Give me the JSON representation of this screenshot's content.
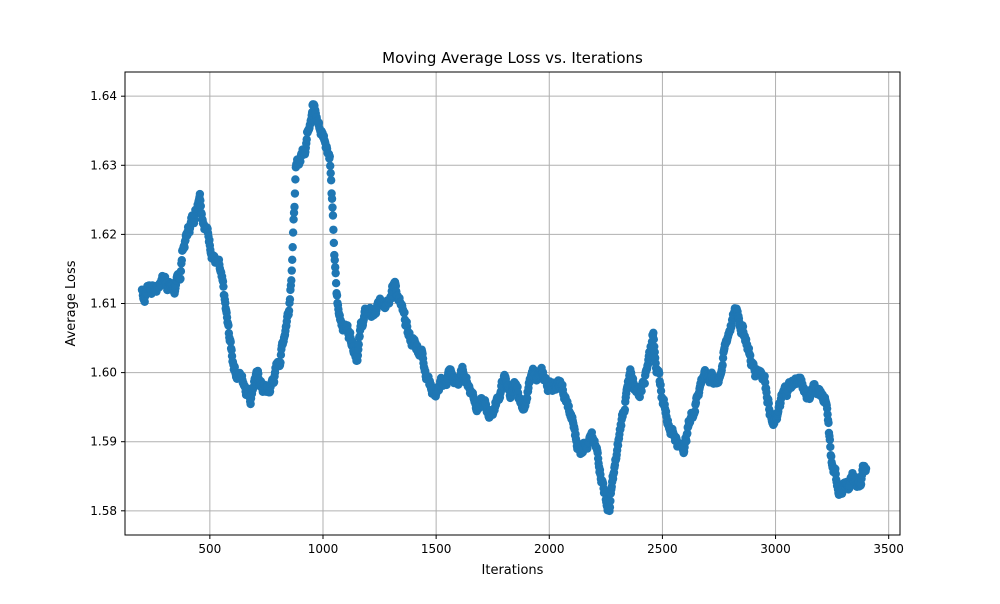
{
  "chart_data": {
    "type": "scatter",
    "title": "Moving Average Loss vs. Iterations",
    "xlabel": "Iterations",
    "ylabel": "Average Loss",
    "xlim": [
      125,
      3550
    ],
    "ylim": [
      1.5765,
      1.6435
    ],
    "grid": true,
    "legend": "none",
    "marker_color": "#1f77b4",
    "xticks": [
      500,
      1000,
      1500,
      2000,
      2500,
      3000,
      3500
    ],
    "xtick_labels": [
      "500",
      "1000",
      "1500",
      "2000",
      "2500",
      "3000",
      "3500"
    ],
    "yticks": [
      1.58,
      1.59,
      1.6,
      1.61,
      1.62,
      1.63,
      1.64
    ],
    "ytick_labels": [
      "1.58",
      "1.59",
      "1.60",
      "1.61",
      "1.62",
      "1.63",
      "1.64"
    ],
    "series": [
      {
        "x_range": [
          200,
          3400
        ],
        "keypoints": [
          [
            200,
            1.612
          ],
          [
            210,
            1.611
          ],
          [
            230,
            1.613
          ],
          [
            260,
            1.612
          ],
          [
            290,
            1.614
          ],
          [
            320,
            1.613
          ],
          [
            350,
            1.612
          ],
          [
            370,
            1.614
          ],
          [
            380,
            1.618
          ],
          [
            400,
            1.62
          ],
          [
            420,
            1.622
          ],
          [
            440,
            1.624
          ],
          [
            455,
            1.627
          ],
          [
            465,
            1.624
          ],
          [
            480,
            1.622
          ],
          [
            500,
            1.619
          ],
          [
            520,
            1.617
          ],
          [
            540,
            1.615
          ],
          [
            560,
            1.611
          ],
          [
            580,
            1.606
          ],
          [
            600,
            1.602
          ],
          [
            620,
            1.6
          ],
          [
            650,
            1.599
          ],
          [
            680,
            1.597
          ],
          [
            700,
            1.6
          ],
          [
            730,
            1.598
          ],
          [
            760,
            1.597
          ],
          [
            790,
            1.6
          ],
          [
            810,
            1.602
          ],
          [
            830,
            1.606
          ],
          [
            850,
            1.61
          ],
          [
            860,
            1.615
          ],
          [
            870,
            1.622
          ],
          [
            880,
            1.629
          ],
          [
            900,
            1.631
          ],
          [
            920,
            1.633
          ],
          [
            940,
            1.637
          ],
          [
            955,
            1.64
          ],
          [
            970,
            1.637
          ],
          [
            990,
            1.635
          ],
          [
            1010,
            1.634
          ],
          [
            1030,
            1.632
          ],
          [
            1040,
            1.625
          ],
          [
            1050,
            1.617
          ],
          [
            1060,
            1.611
          ],
          [
            1070,
            1.608
          ],
          [
            1100,
            1.607
          ],
          [
            1130,
            1.605
          ],
          [
            1150,
            1.603
          ],
          [
            1170,
            1.607
          ],
          [
            1200,
            1.609
          ],
          [
            1230,
            1.608
          ],
          [
            1260,
            1.61
          ],
          [
            1290,
            1.612
          ],
          [
            1320,
            1.613
          ],
          [
            1340,
            1.61
          ],
          [
            1360,
            1.607
          ],
          [
            1380,
            1.605
          ],
          [
            1410,
            1.604
          ],
          [
            1440,
            1.603
          ],
          [
            1460,
            1.6
          ],
          [
            1480,
            1.598
          ],
          [
            1500,
            1.597
          ],
          [
            1530,
            1.598
          ],
          [
            1560,
            1.6
          ],
          [
            1590,
            1.598
          ],
          [
            1620,
            1.6
          ],
          [
            1650,
            1.598
          ],
          [
            1680,
            1.596
          ],
          [
            1710,
            1.595
          ],
          [
            1740,
            1.594
          ],
          [
            1770,
            1.596
          ],
          [
            1800,
            1.599
          ],
          [
            1830,
            1.597
          ],
          [
            1860,
            1.597
          ],
          [
            1880,
            1.595
          ],
          [
            1910,
            1.598
          ],
          [
            1940,
            1.6
          ],
          [
            1970,
            1.599
          ],
          [
            2000,
            1.598
          ],
          [
            2030,
            1.599
          ],
          [
            2060,
            1.597
          ],
          [
            2080,
            1.595
          ],
          [
            2100,
            1.593
          ],
          [
            2120,
            1.59
          ],
          [
            2140,
            1.589
          ],
          [
            2160,
            1.591
          ],
          [
            2180,
            1.591
          ],
          [
            2200,
            1.589
          ],
          [
            2220,
            1.587
          ],
          [
            2240,
            1.584
          ],
          [
            2255,
            1.581
          ],
          [
            2265,
            1.58
          ],
          [
            2280,
            1.584
          ],
          [
            2300,
            1.588
          ],
          [
            2320,
            1.593
          ],
          [
            2340,
            1.597
          ],
          [
            2360,
            1.599
          ],
          [
            2380,
            1.598
          ],
          [
            2400,
            1.597
          ],
          [
            2420,
            1.6
          ],
          [
            2440,
            1.603
          ],
          [
            2460,
            1.606
          ],
          [
            2480,
            1.6
          ],
          [
            2500,
            1.596
          ],
          [
            2520,
            1.594
          ],
          [
            2540,
            1.592
          ],
          [
            2560,
            1.591
          ],
          [
            2580,
            1.589
          ],
          [
            2600,
            1.59
          ],
          [
            2620,
            1.593
          ],
          [
            2640,
            1.595
          ],
          [
            2660,
            1.598
          ],
          [
            2680,
            1.6
          ],
          [
            2700,
            1.599
          ],
          [
            2720,
            1.6
          ],
          [
            2740,
            1.598
          ],
          [
            2760,
            1.601
          ],
          [
            2780,
            1.604
          ],
          [
            2800,
            1.607
          ],
          [
            2830,
            1.609
          ],
          [
            2850,
            1.607
          ],
          [
            2870,
            1.605
          ],
          [
            2890,
            1.602
          ],
          [
            2910,
            1.6
          ],
          [
            2930,
            1.601
          ],
          [
            2950,
            1.6
          ],
          [
            2970,
            1.596
          ],
          [
            2990,
            1.592
          ],
          [
            3010,
            1.594
          ],
          [
            3030,
            1.596
          ],
          [
            3060,
            1.598
          ],
          [
            3090,
            1.599
          ],
          [
            3120,
            1.598
          ],
          [
            3150,
            1.597
          ],
          [
            3180,
            1.598
          ],
          [
            3200,
            1.597
          ],
          [
            3220,
            1.596
          ],
          [
            3230,
            1.593
          ],
          [
            3240,
            1.589
          ],
          [
            3250,
            1.586
          ],
          [
            3270,
            1.584
          ],
          [
            3290,
            1.583
          ],
          [
            3310,
            1.583
          ],
          [
            3330,
            1.584
          ],
          [
            3350,
            1.585
          ],
          [
            3370,
            1.584
          ],
          [
            3385,
            1.586
          ],
          [
            3400,
            1.586
          ]
        ]
      }
    ]
  }
}
